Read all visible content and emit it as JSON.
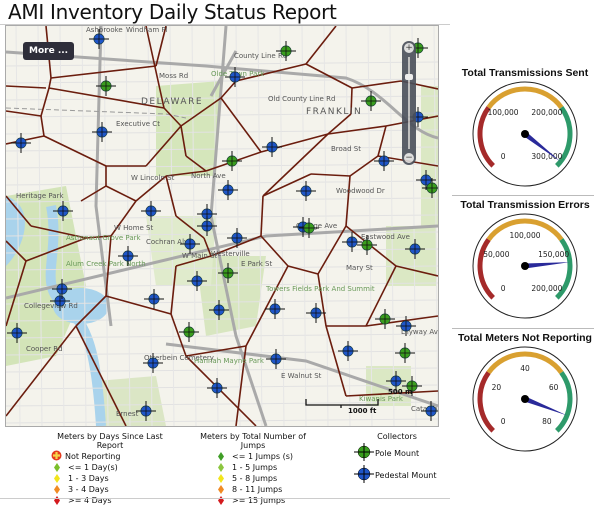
{
  "title": "AMI Inventory Daily Status Report",
  "map": {
    "more_button": "More ...",
    "zoom_in": "+",
    "zoom_out": "−",
    "scale_m": "500 m",
    "scale_ft": "1000 ft",
    "labels": [
      "Ashbrooke",
      "Windham Pl",
      "Moss Rd",
      "County Line Rd",
      "Olde Town Park",
      "DELAWARE",
      "Old County Line Rd",
      "FRANKLIN",
      "Executive Ct",
      "Broad St",
      "W Lincoln St",
      "North Ave",
      "Woodwood Dr",
      "W Home St",
      "Cochran Aly",
      "W Main St",
      "Astronaut Grove Park",
      "Alum Creek Park North",
      "Westerville",
      "College Ave",
      "Eastwood Ave",
      "Mary St",
      "E Park St",
      "Towers Fields Park And Summit",
      "Collegeview Rd",
      "Cooper Rd",
      "Otterbein Cemetery",
      "Hannah Mayne Park",
      "E Walnut St",
      "Kiwanis Park",
      "Lilyway Ave",
      "Heritage Park",
      "Ernest",
      "Catawba Dr"
    ]
  },
  "legend": {
    "days": {
      "title": "Meters by Days Since Last Report",
      "items": [
        {
          "label": "Not Reporting",
          "color": "#e53b1f"
        },
        {
          "label": "<= 1 Day(s)",
          "color": "#7cbf2a"
        },
        {
          "label": "1 - 3 Days",
          "color": "#f2e51c"
        },
        {
          "label": "3 - 4 Days",
          "color": "#f08a24"
        },
        {
          "label": ">= 4 Days",
          "color": "#d4191d"
        }
      ]
    },
    "jumps": {
      "title": "Meters by Total Number of Jumps",
      "items": [
        {
          "label": "<= 1 Jumps (s)",
          "color": "#3f9e26"
        },
        {
          "label": "1 - 5 Jumps",
          "color": "#8cc63f"
        },
        {
          "label": "5 - 8 Jumps",
          "color": "#f2e51c"
        },
        {
          "label": "8 - 11 Jumps",
          "color": "#f08a24"
        },
        {
          "label": ">= 15 Jumps",
          "color": "#d4191d"
        }
      ]
    },
    "collectors": {
      "title": "Collectors",
      "items": [
        {
          "label": "Pole Mount",
          "color": "#3a9e1e"
        },
        {
          "label": "Pedestal Mount",
          "color": "#1f56c9"
        }
      ]
    }
  },
  "gauges": [
    {
      "title": "Total Transmissions Sent",
      "min": 0,
      "max": 300000,
      "value": 292000,
      "ticks": [
        "0",
        "100,000",
        "200,000",
        "300,000"
      ]
    },
    {
      "title": "Total Transmission Errors",
      "min": 0,
      "max": 200000,
      "value": 163000,
      "ticks": [
        "0",
        "50,000",
        "100,000",
        "150,000",
        "200,000"
      ]
    },
    {
      "title": "Total Meters Not Reporting",
      "min": 0,
      "max": 80,
      "value": 73,
      "ticks": [
        "0",
        "20",
        "40",
        "60",
        "80"
      ]
    }
  ],
  "colors": {
    "red": "#a52a2a",
    "amber": "#d9a030",
    "green": "#2e9a6a",
    "needle": "#2a2a9a"
  }
}
